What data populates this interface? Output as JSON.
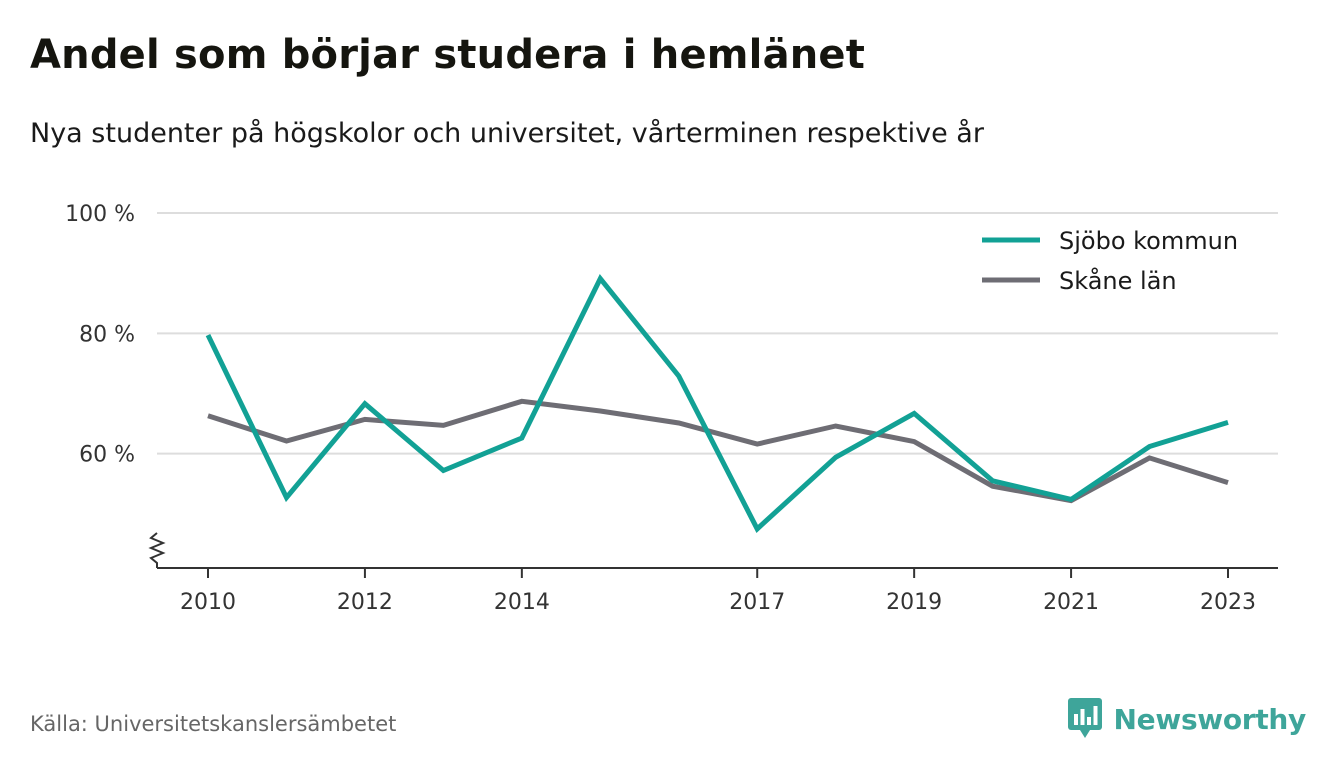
{
  "title": "Andel som börjar studera i hemlänet",
  "subtitle": "Nya studenter på högskolor och universitet, vårterminen respektive år",
  "source": "Källa: Universitetskanslersämbetet",
  "brand": "Newsworthy",
  "colors": {
    "sjobo": "#12a195",
    "skane": "#6e6d74",
    "grid": "#dddddd",
    "axis": "#333333",
    "brand": "#3ea59a"
  },
  "chart_data": {
    "type": "line",
    "x": [
      2010,
      2011,
      2012,
      2013,
      2014,
      2015,
      2016,
      2017,
      2018,
      2019,
      2020,
      2021,
      2022,
      2023
    ],
    "x_tick_labels": [
      "2010",
      "2012",
      "2014",
      "2017",
      "2019",
      "2021",
      "2023"
    ],
    "x_tick_values": [
      2010,
      2012,
      2014,
      2017,
      2019,
      2021,
      2023
    ],
    "y_tick_labels": [
      "100 %",
      "80 %",
      "60 %"
    ],
    "y_tick_values": [
      100,
      80,
      60
    ],
    "ylim": [
      41,
      100
    ],
    "y_axis_break": true,
    "grid": true,
    "legend_position": "top-right",
    "series": [
      {
        "name": "Sjöbo kommun",
        "values": [
          79.7,
          52.7,
          68.3,
          57.2,
          62.6,
          89.1,
          72.9,
          47.5,
          59.4,
          66.7,
          55.5,
          52.4,
          61.2,
          65.2
        ]
      },
      {
        "name": "Skåne län",
        "values": [
          66.3,
          62.1,
          65.7,
          64.7,
          68.7,
          67.1,
          65.1,
          61.6,
          64.6,
          62.0,
          54.6,
          52.2,
          59.3,
          55.2
        ]
      }
    ]
  }
}
